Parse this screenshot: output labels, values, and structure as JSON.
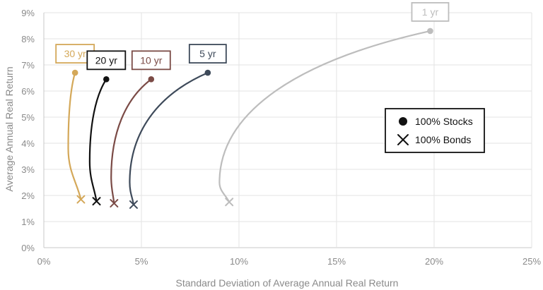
{
  "chart_data": {
    "type": "line",
    "xlabel": "Standard Deviation of Average Annual Real Return",
    "ylabel": "Average Annual Real Return",
    "xlim": [
      0,
      25
    ],
    "ylim": [
      0,
      9
    ],
    "xticks": [
      "0%",
      "5%",
      "10%",
      "15%",
      "20%",
      "25%"
    ],
    "yticks": [
      "0%",
      "1%",
      "2%",
      "3%",
      "4%",
      "5%",
      "6%",
      "7%",
      "8%",
      "9%"
    ],
    "grid": true,
    "legend": {
      "placement": "right",
      "entries": [
        {
          "marker": "circle",
          "label": "100% Stocks"
        },
        {
          "marker": "x",
          "label": "100% Bonds"
        }
      ]
    },
    "series": [
      {
        "name": "30 yr",
        "color": "#d4a859",
        "stocks": {
          "x": 1.6,
          "y": 6.7
        },
        "bonds": {
          "x": 1.9,
          "y": 1.85
        },
        "min_variance": {
          "x": 1.25,
          "y": 3.8
        }
      },
      {
        "name": "20 yr",
        "color": "#111111",
        "stocks": {
          "x": 3.2,
          "y": 6.45
        },
        "bonds": {
          "x": 2.7,
          "y": 1.78
        },
        "min_variance": {
          "x": 2.35,
          "y": 3.3
        }
      },
      {
        "name": "10 yr",
        "color": "#7b4b46",
        "stocks": {
          "x": 5.5,
          "y": 6.45
        },
        "bonds": {
          "x": 3.6,
          "y": 1.7
        },
        "min_variance": {
          "x": 3.45,
          "y": 2.7
        }
      },
      {
        "name": "5 yr",
        "color": "#3e4a5a",
        "stocks": {
          "x": 8.4,
          "y": 6.7
        },
        "bonds": {
          "x": 4.6,
          "y": 1.65
        },
        "min_variance": {
          "x": 4.4,
          "y": 2.5
        }
      },
      {
        "name": "1 yr",
        "color": "#bdbdbd",
        "stocks": {
          "x": 19.8,
          "y": 8.3
        },
        "bonds": {
          "x": 9.5,
          "y": 1.75
        },
        "min_variance": {
          "x": 9.0,
          "y": 2.5
        }
      }
    ]
  }
}
